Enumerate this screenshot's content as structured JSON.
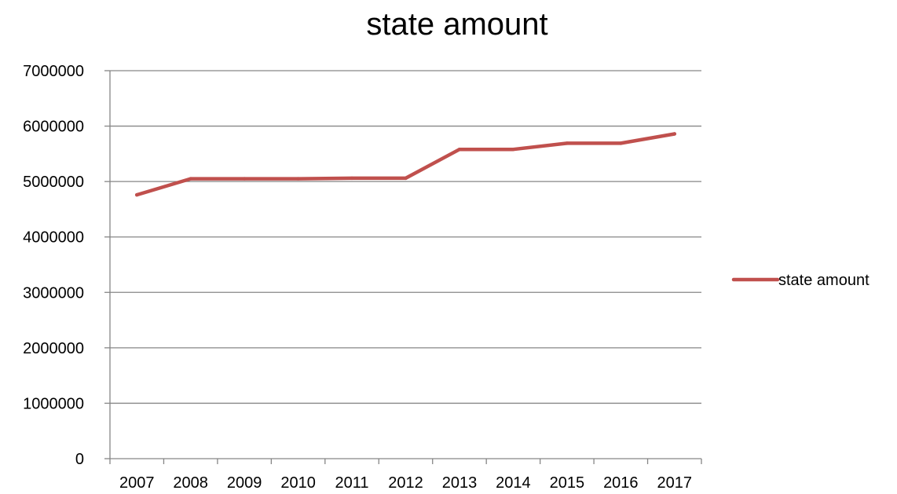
{
  "chart_data": {
    "type": "line",
    "title": "state amount",
    "xlabel": "",
    "ylabel": "",
    "categories": [
      "2007",
      "2008",
      "2009",
      "2010",
      "2011",
      "2012",
      "2013",
      "2014",
      "2015",
      "2016",
      "2017"
    ],
    "series": [
      {
        "name": "state amount",
        "color": "#c0504d",
        "values": [
          4760000,
          5050000,
          5050000,
          5050000,
          5060000,
          5060000,
          5580000,
          5580000,
          5690000,
          5690000,
          5860000
        ]
      }
    ],
    "ylim": [
      0,
      7000000
    ],
    "yticks": [
      "0",
      "1000000",
      "2000000",
      "3000000",
      "4000000",
      "5000000",
      "6000000",
      "7000000"
    ],
    "grid": true,
    "legend": "right",
    "gridline_color": "#868686"
  }
}
